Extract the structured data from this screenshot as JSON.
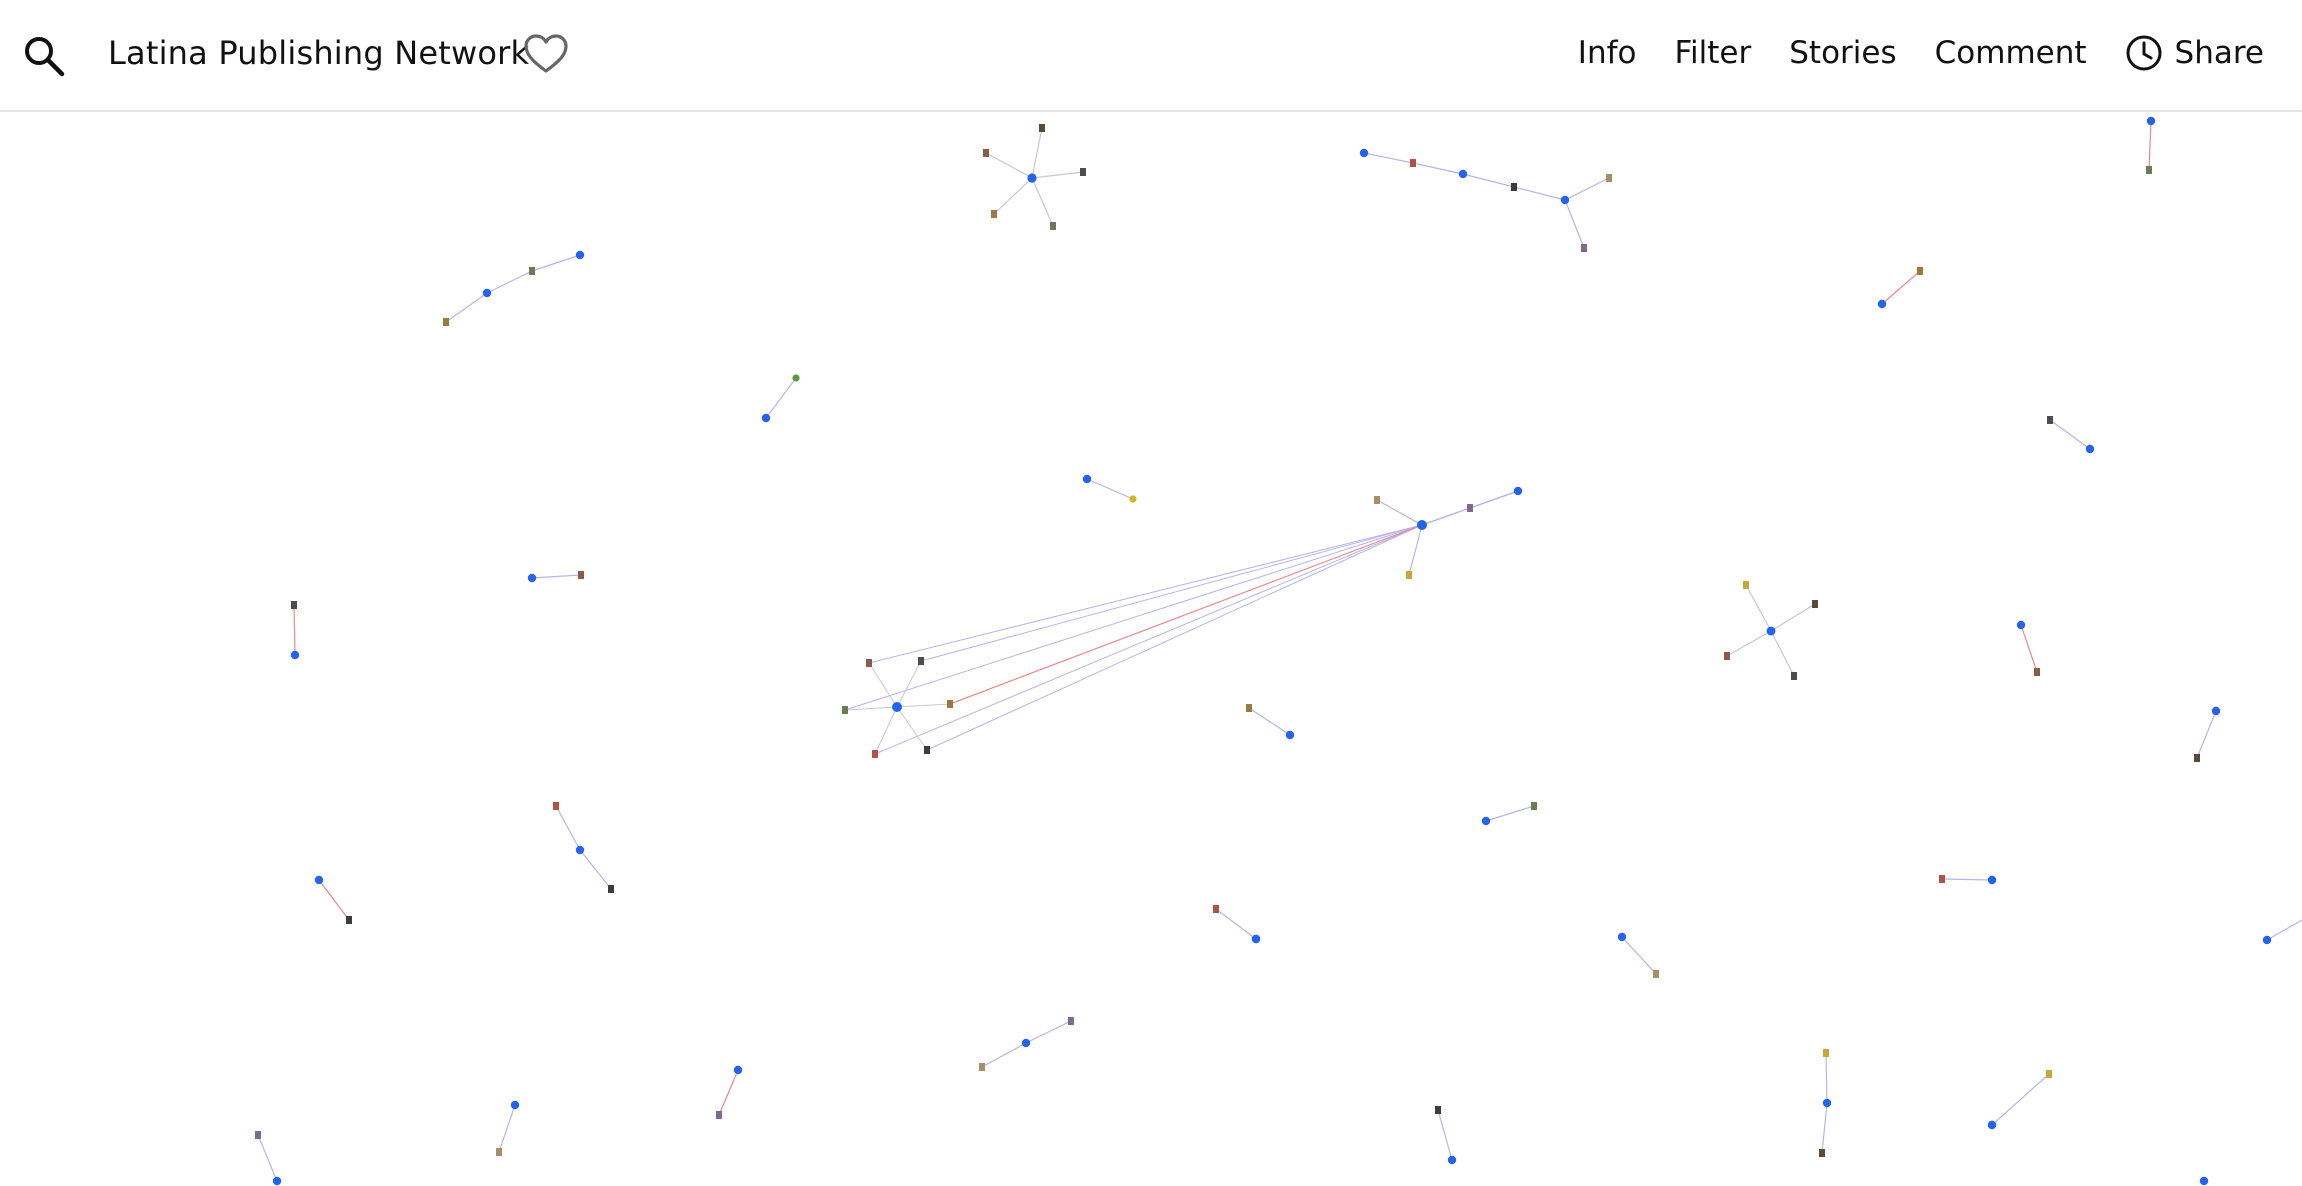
{
  "header": {
    "title": "Latina Publishing Network",
    "nav": [
      {
        "label": "Info"
      },
      {
        "label": "Filter"
      },
      {
        "label": "Stories"
      },
      {
        "label": "Comment"
      },
      {
        "label": "Share"
      }
    ]
  },
  "icons": {
    "search": "search-icon",
    "favorite": "heart-icon",
    "share": "clock-icon"
  },
  "colors": {
    "node_person": "#2463eb",
    "edge_default": "#b7b4ea",
    "edge_highlight": "#e8898c",
    "header_border": "#e3e3e3"
  }
}
